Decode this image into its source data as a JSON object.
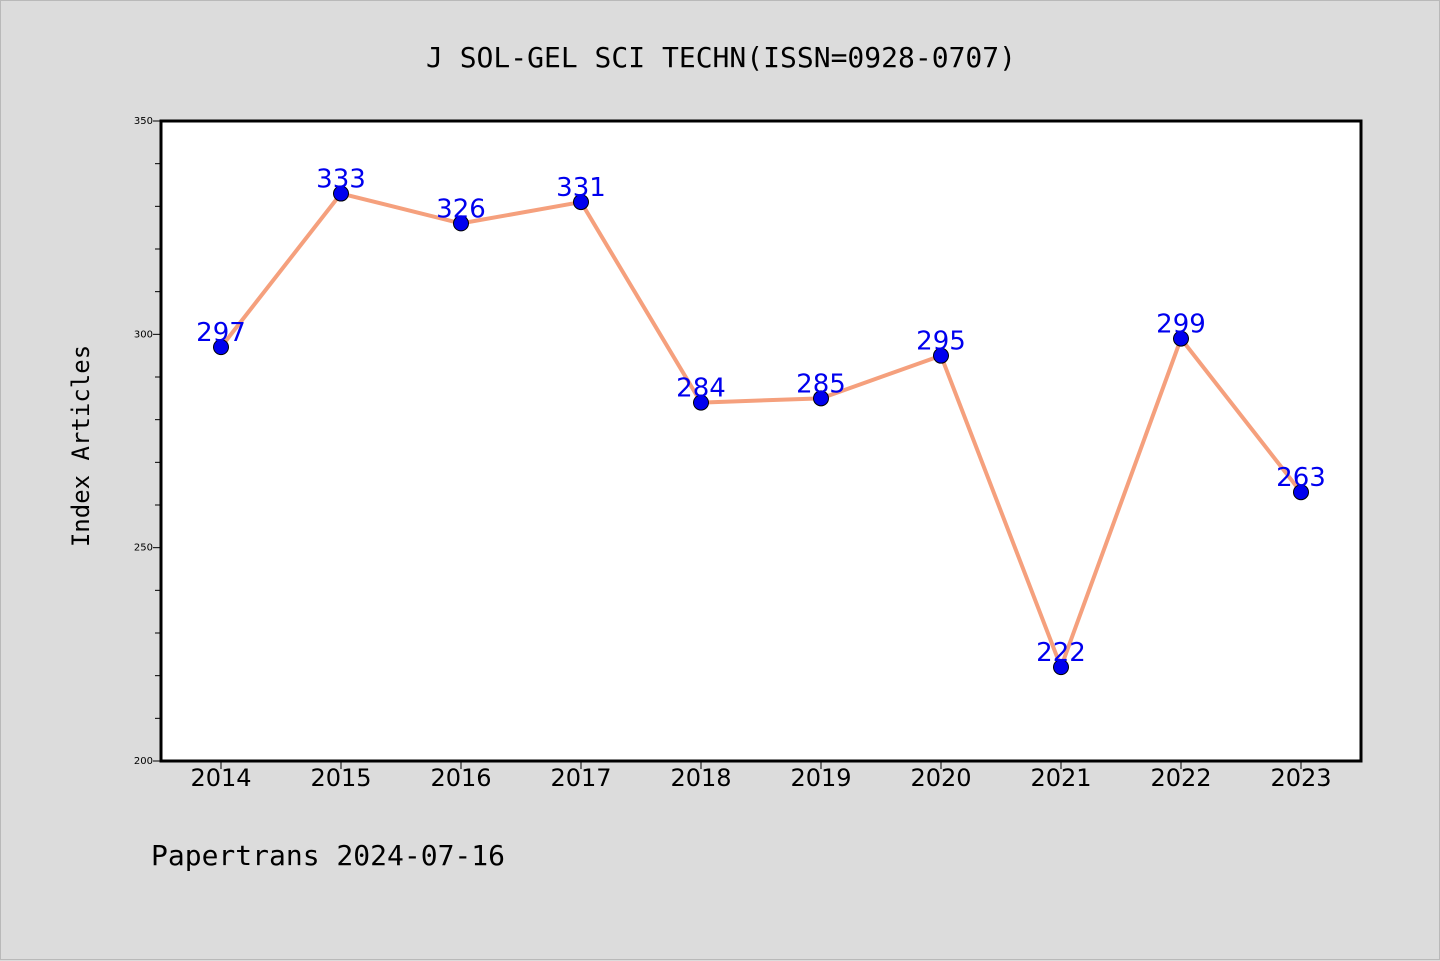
{
  "chart_data": {
    "type": "line",
    "title": "J SOL-GEL SCI TECHN(ISSN=0928-0707)",
    "xlabel": "",
    "ylabel": "Index Articles",
    "categories": [
      "2014",
      "2015",
      "2016",
      "2017",
      "2018",
      "2019",
      "2020",
      "2021",
      "2022",
      "2023"
    ],
    "values": [
      297,
      333,
      326,
      331,
      284,
      285,
      295,
      222,
      299,
      263
    ],
    "ylim": [
      200,
      350
    ],
    "yticks": [
      200,
      250,
      300,
      350
    ],
    "grid": false,
    "line_color": "#f5a07d",
    "marker_color": "#0000ee",
    "label_color": "#0000ee"
  },
  "footer": "Papertrans 2024-07-16"
}
